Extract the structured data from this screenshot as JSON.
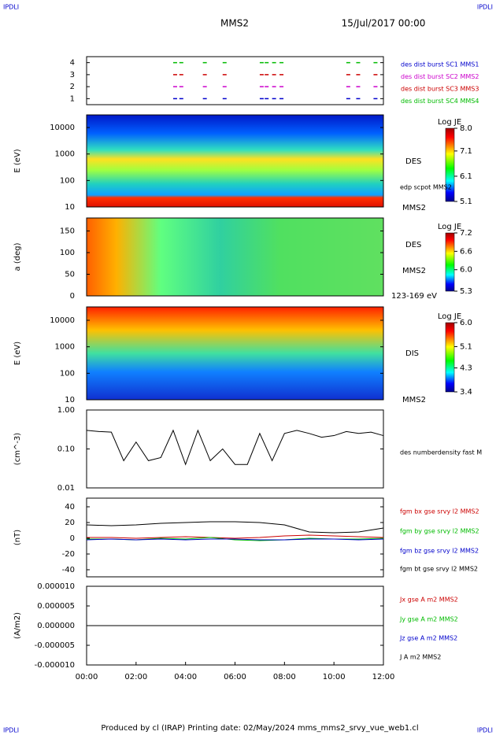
{
  "header": {
    "corner_left": "IPDLI",
    "corner_right": "IPDLI",
    "spacecraft": "MMS2",
    "date": "15/Jul/2017 00:00"
  },
  "footer": {
    "text": "Produced by cl (IRAP)   Printing date: 02/May/2024   mms_mms2_srvy_vue_web1.cl",
    "corner_left": "IPDLI",
    "corner_right": "IPDLI"
  },
  "chart_data": [
    {
      "type": "burst",
      "xlim": [
        0,
        12
      ],
      "ylim": [
        0.5,
        4.5
      ],
      "yticks": [
        1,
        2,
        3,
        4
      ],
      "x": [
        3.5,
        3.75,
        4.7,
        5.5,
        7.0,
        7.2,
        7.5,
        7.8,
        10.5,
        10.9,
        11.6
      ],
      "series": [
        {
          "name": "des dist burst SC1 MMS1",
          "color": "#0000cc",
          "values": [
            1,
            1,
            1,
            1,
            1,
            1,
            1,
            1,
            1,
            1,
            1
          ]
        },
        {
          "name": "des dist burst SC2 MMS2",
          "color": "#cc00cc",
          "values": [
            2,
            2,
            2,
            2,
            2,
            2,
            2,
            2,
            2,
            2,
            2
          ]
        },
        {
          "name": "des dist burst SC3 MMS3",
          "color": "#cc0000",
          "values": [
            3,
            3,
            3,
            3,
            3,
            3,
            3,
            3,
            3,
            3,
            3
          ]
        },
        {
          "name": "des dist burst SC4 MMS4",
          "color": "#00bb00",
          "values": [
            4,
            4,
            4,
            4,
            4,
            4,
            4,
            4,
            4,
            4,
            4
          ]
        }
      ]
    },
    {
      "type": "spectrogram",
      "ylabel": "E (eV)",
      "log": true,
      "ylim": [
        10,
        30000
      ],
      "yticks": [
        10,
        100,
        1000,
        10000
      ],
      "labels": [
        "DES",
        "edp scpot MMS2",
        "MMS2"
      ],
      "colorbar": {
        "title": "Log JE",
        "clim": [
          5.1,
          8.0
        ],
        "ticks": [
          {
            "value": 8,
            "label": "8.0"
          },
          7.1,
          6.1,
          5.1
        ]
      }
    },
    {
      "type": "spectrogram",
      "ylabel": "a (deg)",
      "ylim": [
        0,
        180
      ],
      "yticks": [
        0,
        50,
        100,
        150
      ],
      "labels": [
        "DES",
        "MMS2",
        "123-169 eV"
      ],
      "colorbar": {
        "title": "Log JE",
        "clim": [
          5.3,
          7.2
        ],
        "ticks": [
          7.2,
          6.6,
          {
            "value": 6,
            "label": "6.0"
          },
          5.3
        ]
      }
    },
    {
      "type": "spectrogram",
      "ylabel": "E (eV)",
      "log": true,
      "ylim": [
        10,
        32000
      ],
      "yticks": [
        10,
        100,
        1000,
        10000
      ],
      "labels": [
        "DIS",
        "MMS2"
      ],
      "colorbar": {
        "title": "Log JE",
        "clim": [
          3.4,
          6.0
        ],
        "ticks": [
          {
            "value": 6,
            "label": "6.0"
          },
          5.1,
          4.3,
          3.4
        ]
      }
    },
    {
      "type": "line",
      "ylabel": "(cm^-3)",
      "log": true,
      "xlim": [
        0,
        12
      ],
      "ylim": [
        0.01,
        1
      ],
      "yticks": [
        {
          "value": 1,
          "label": "1.00"
        },
        {
          "value": 0.1,
          "label": "0.10"
        },
        0.01
      ],
      "x": [
        0,
        0.5,
        1,
        1.5,
        2,
        2.5,
        3,
        3.5,
        4,
        4.5,
        5,
        5.5,
        6,
        6.5,
        7,
        7.5,
        8,
        8.5,
        9,
        9.5,
        10,
        10.5,
        11,
        11.5,
        12
      ],
      "series": [
        {
          "name": "des numberdensity fast M",
          "color": "#000000",
          "values": [
            0.3,
            0.28,
            0.27,
            0.05,
            0.15,
            0.05,
            0.06,
            0.3,
            0.04,
            0.3,
            0.05,
            0.1,
            0.04,
            0.04,
            0.25,
            0.05,
            0.25,
            0.3,
            0.25,
            0.2,
            0.22,
            0.28,
            0.25,
            0.27,
            0.22
          ]
        }
      ]
    },
    {
      "type": "line",
      "ylabel": "(nT)",
      "xlim": [
        0,
        12
      ],
      "ylim": [
        -49,
        51
      ],
      "yticks": [
        40,
        20,
        0,
        -20,
        -40
      ],
      "x": [
        0,
        1,
        2,
        3,
        4,
        5,
        6,
        7,
        8,
        9,
        10,
        11,
        12
      ],
      "series": [
        {
          "name": "fgm bx gse srvy l2 MMS2",
          "color": "#cc0000",
          "values": [
            1,
            1,
            0,
            1,
            2,
            1,
            0,
            1,
            3,
            4,
            3,
            2,
            1
          ]
        },
        {
          "name": "fgm by gse srvy l2 MMS2",
          "color": "#00bb00",
          "values": [
            -1,
            -1,
            -2,
            0,
            -1,
            1,
            -2,
            -3,
            -2,
            0,
            -1,
            -1,
            0
          ]
        },
        {
          "name": "fgm bz gse srvy l2 MMS2",
          "color": "#0000cc",
          "values": [
            -2,
            -1,
            -2,
            -1,
            -2,
            -1,
            -1,
            -2,
            -2,
            -1,
            -1,
            -2,
            -1
          ]
        },
        {
          "name": "fgm bt gse srvy l2 MMS2",
          "color": "#000000",
          "values": [
            17,
            16,
            17,
            19,
            20,
            21,
            21,
            20,
            17,
            8,
            7,
            8,
            13
          ]
        }
      ]
    },
    {
      "type": "line",
      "ylabel": "(A/m2)",
      "xlim": [
        0,
        12
      ],
      "ylim": [
        -1e-05,
        1e-05
      ],
      "yticks": [
        {
          "value": 1e-05,
          "label": "0.000010"
        },
        {
          "value": 5e-06,
          "label": "0.000005"
        },
        {
          "value": 0,
          "label": "0.000000"
        },
        {
          "value": -5e-06,
          "label": "-0.000005"
        },
        {
          "value": -1e-05,
          "label": "-0.000010"
        }
      ],
      "x": [
        0,
        12
      ],
      "xticks": [
        {
          "value": 0,
          "label": "00:00"
        },
        {
          "value": 2,
          "label": "02:00"
        },
        {
          "value": 4,
          "label": "04:00"
        },
        {
          "value": 6,
          "label": "06:00"
        },
        {
          "value": 8,
          "label": "08:00"
        },
        {
          "value": 10,
          "label": "10:00"
        },
        {
          "value": 12,
          "label": "12:00"
        }
      ],
      "series": [
        {
          "name": "Jx gse A m2 MMS2",
          "color": "#cc0000",
          "values": [
            0,
            0
          ]
        },
        {
          "name": "Jy gse A m2 MMS2",
          "color": "#00bb00",
          "values": [
            0,
            0
          ]
        },
        {
          "name": "Jz gse A m2 MMS2",
          "color": "#0000cc",
          "values": [
            0,
            0
          ]
        },
        {
          "name": "J A m2 MMS2",
          "color": "#000000",
          "values": [
            0,
            0
          ]
        }
      ]
    }
  ]
}
